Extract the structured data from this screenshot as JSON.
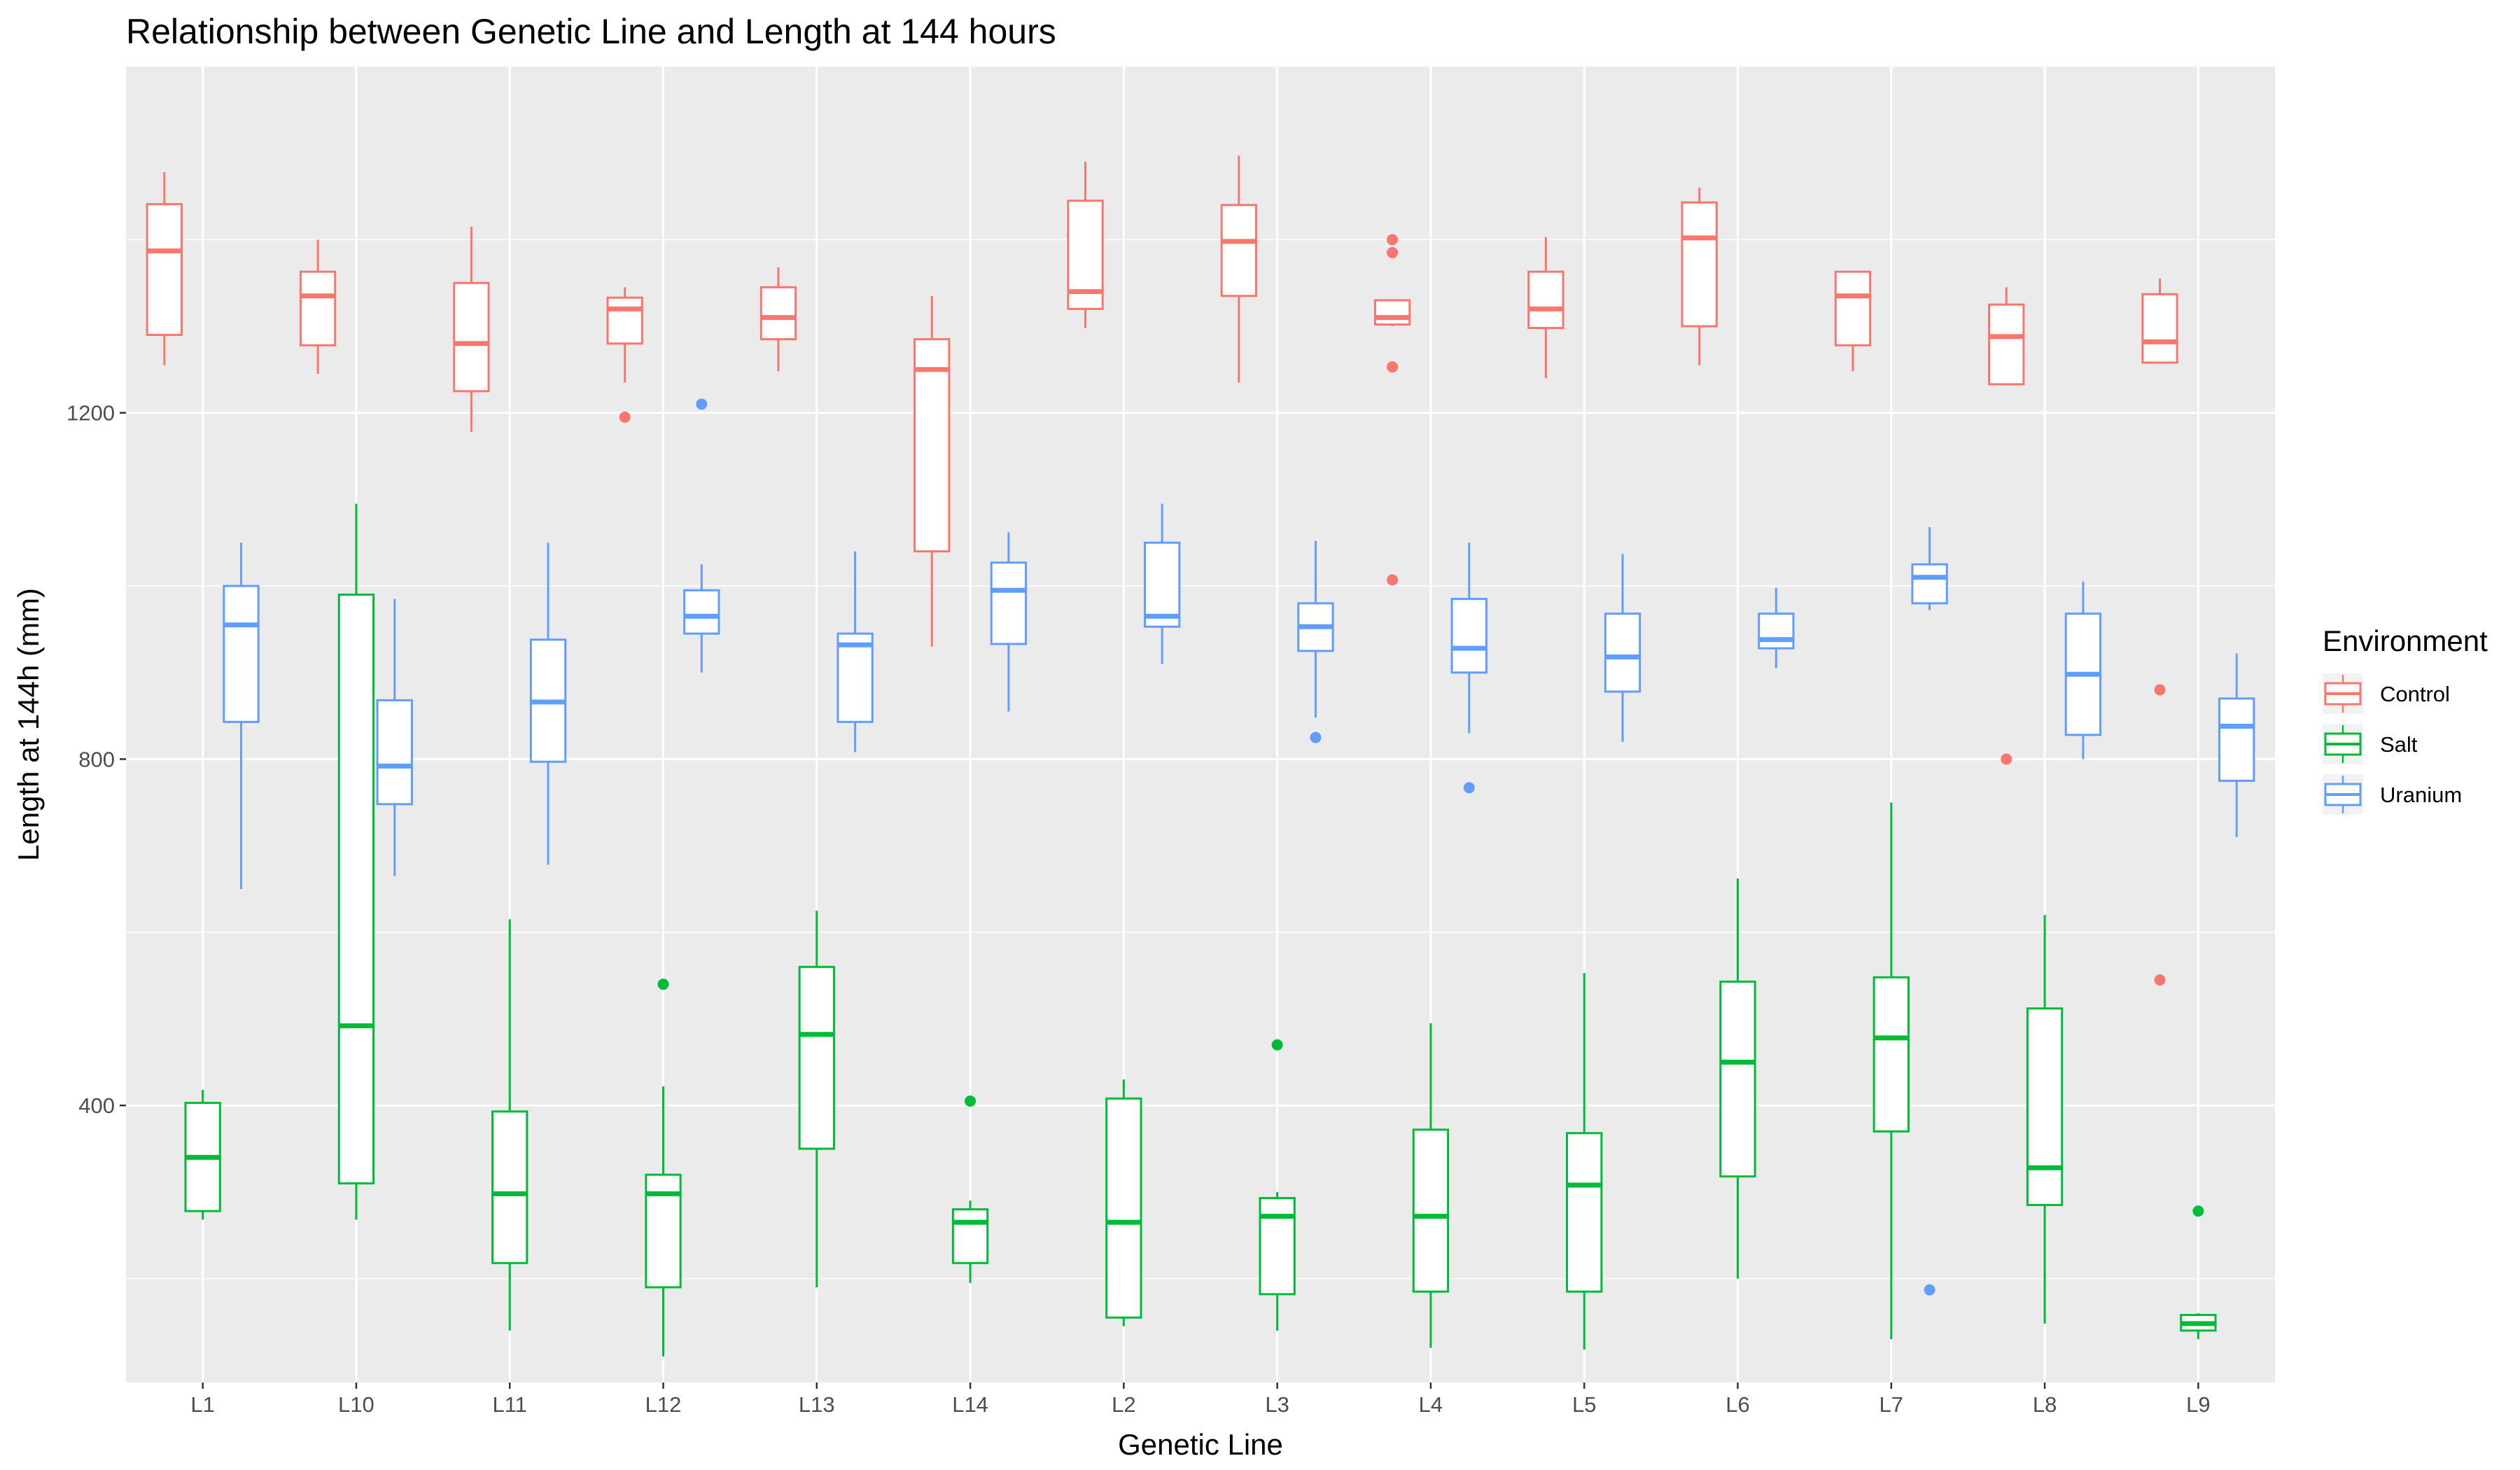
{
  "chart_data": {
    "type": "boxplot",
    "title": "Relationship between Genetic Line and Length at 144 hours",
    "xlabel": "Genetic Line",
    "ylabel": "Length at 144h (mm)",
    "ylim": [
      80,
      1600
    ],
    "yticks": [
      400,
      800,
      1200
    ],
    "grid": true,
    "legend": {
      "title": "Environment",
      "position": "right",
      "entries": [
        "Control",
        "Salt",
        "Uranium"
      ]
    },
    "colors": {
      "Control": "#F8766D",
      "Salt": "#00BA38",
      "Uranium": "#619CFF"
    },
    "categories": [
      "L1",
      "L10",
      "L11",
      "L12",
      "L13",
      "L14",
      "L2",
      "L3",
      "L4",
      "L5",
      "L6",
      "L7",
      "L8",
      "L9"
    ],
    "groups": [
      {
        "line": "L1",
        "env": "Control",
        "min": 1255,
        "q1": 1290,
        "median": 1387,
        "q3": 1441,
        "max": 1478,
        "outliers": []
      },
      {
        "line": "L1",
        "env": "Salt",
        "min": 268,
        "q1": 278,
        "median": 340,
        "q3": 403,
        "max": 418,
        "outliers": []
      },
      {
        "line": "L1",
        "env": "Uranium",
        "min": 650,
        "q1": 843,
        "median": 955,
        "q3": 1000,
        "max": 1050,
        "outliers": []
      },
      {
        "line": "L10",
        "env": "Salt",
        "min": 268,
        "q1": 310,
        "median": 492,
        "q3": 990,
        "max": 1095,
        "outliers": []
      },
      {
        "line": "L10",
        "env": "Control",
        "min": 1245,
        "q1": 1278,
        "median": 1335,
        "q3": 1363,
        "max": 1400,
        "outliers": []
      },
      {
        "line": "L10",
        "env": "Uranium",
        "min": 665,
        "q1": 748,
        "median": 792,
        "q3": 868,
        "max": 985,
        "outliers": []
      },
      {
        "line": "L11",
        "env": "Control",
        "min": 1178,
        "q1": 1225,
        "median": 1280,
        "q3": 1350,
        "max": 1415,
        "outliers": []
      },
      {
        "line": "L11",
        "env": "Salt",
        "min": 140,
        "q1": 218,
        "median": 298,
        "q3": 393,
        "max": 615,
        "outliers": []
      },
      {
        "line": "L11",
        "env": "Uranium",
        "min": 678,
        "q1": 797,
        "median": 866,
        "q3": 938,
        "max": 1050,
        "outliers": []
      },
      {
        "line": "L12",
        "env": "Control",
        "min": 1235,
        "q1": 1280,
        "median": 1320,
        "q3": 1333,
        "max": 1345,
        "outliers": [
          1195
        ]
      },
      {
        "line": "L12",
        "env": "Salt",
        "min": 110,
        "q1": 190,
        "median": 298,
        "q3": 320,
        "max": 422,
        "outliers": [
          540
        ]
      },
      {
        "line": "L12",
        "env": "Uranium",
        "min": 900,
        "q1": 945,
        "median": 965,
        "q3": 995,
        "max": 1025,
        "outliers": [
          1210
        ]
      },
      {
        "line": "L13",
        "env": "Control",
        "min": 1248,
        "q1": 1285,
        "median": 1310,
        "q3": 1345,
        "max": 1368,
        "outliers": []
      },
      {
        "line": "L13",
        "env": "Salt",
        "min": 190,
        "q1": 350,
        "median": 482,
        "q3": 560,
        "max": 625,
        "outliers": []
      },
      {
        "line": "L13",
        "env": "Uranium",
        "min": 808,
        "q1": 843,
        "median": 932,
        "q3": 945,
        "max": 1040,
        "outliers": []
      },
      {
        "line": "L14",
        "env": "Control",
        "min": 930,
        "q1": 1040,
        "median": 1250,
        "q3": 1285,
        "max": 1335,
        "outliers": []
      },
      {
        "line": "L14",
        "env": "Salt",
        "min": 195,
        "q1": 218,
        "median": 265,
        "q3": 280,
        "max": 290,
        "outliers": [
          405
        ]
      },
      {
        "line": "L14",
        "env": "Uranium",
        "min": 855,
        "q1": 933,
        "median": 995,
        "q3": 1027,
        "max": 1062,
        "outliers": []
      },
      {
        "line": "L2",
        "env": "Control",
        "min": 1298,
        "q1": 1320,
        "median": 1340,
        "q3": 1445,
        "max": 1490,
        "outliers": []
      },
      {
        "line": "L2",
        "env": "Salt",
        "min": 145,
        "q1": 155,
        "median": 265,
        "q3": 408,
        "max": 430,
        "outliers": []
      },
      {
        "line": "L2",
        "env": "Uranium",
        "min": 910,
        "q1": 953,
        "median": 965,
        "q3": 1050,
        "max": 1095,
        "outliers": []
      },
      {
        "line": "L3",
        "env": "Control",
        "min": 1235,
        "q1": 1335,
        "median": 1398,
        "q3": 1440,
        "max": 1497,
        "outliers": []
      },
      {
        "line": "L3",
        "env": "Salt",
        "min": 140,
        "q1": 182,
        "median": 272,
        "q3": 293,
        "max": 300,
        "outliers": [
          470
        ]
      },
      {
        "line": "L3",
        "env": "Uranium",
        "min": 848,
        "q1": 925,
        "median": 953,
        "q3": 980,
        "max": 1052,
        "outliers": [
          825
        ]
      },
      {
        "line": "L4",
        "env": "Control",
        "min": 1300,
        "q1": 1302,
        "median": 1310,
        "q3": 1330,
        "max": 1330,
        "outliers": [
          1400,
          1385,
          1253,
          1007
        ]
      },
      {
        "line": "L4",
        "env": "Salt",
        "min": 120,
        "q1": 185,
        "median": 272,
        "q3": 372,
        "max": 495,
        "outliers": []
      },
      {
        "line": "L4",
        "env": "Uranium",
        "min": 830,
        "q1": 900,
        "median": 928,
        "q3": 985,
        "max": 1050,
        "outliers": [
          767
        ]
      },
      {
        "line": "L5",
        "env": "Control",
        "min": 1240,
        "q1": 1298,
        "median": 1320,
        "q3": 1363,
        "max": 1403,
        "outliers": []
      },
      {
        "line": "L5",
        "env": "Salt",
        "min": 118,
        "q1": 185,
        "median": 308,
        "q3": 368,
        "max": 553,
        "outliers": []
      },
      {
        "line": "L5",
        "env": "Uranium",
        "min": 820,
        "q1": 878,
        "median": 918,
        "q3": 968,
        "max": 1037,
        "outliers": []
      },
      {
        "line": "L6",
        "env": "Control",
        "min": 1255,
        "q1": 1300,
        "median": 1402,
        "q3": 1443,
        "max": 1460,
        "outliers": []
      },
      {
        "line": "L6",
        "env": "Salt",
        "min": 200,
        "q1": 318,
        "median": 450,
        "q3": 543,
        "max": 662,
        "outliers": []
      },
      {
        "line": "L6",
        "env": "Uranium",
        "min": 905,
        "q1": 928,
        "median": 938,
        "q3": 968,
        "max": 998,
        "outliers": []
      },
      {
        "line": "L7",
        "env": "Control",
        "min": 1248,
        "q1": 1278,
        "median": 1335,
        "q3": 1363,
        "max": 1363,
        "outliers": []
      },
      {
        "line": "L7",
        "env": "Salt",
        "min": 130,
        "q1": 370,
        "median": 478,
        "q3": 548,
        "max": 750,
        "outliers": []
      },
      {
        "line": "L7",
        "env": "Uranium",
        "min": 972,
        "q1": 980,
        "median": 1010,
        "q3": 1025,
        "max": 1068,
        "outliers": [
          187
        ]
      },
      {
        "line": "L8",
        "env": "Control",
        "min": 1233,
        "q1": 1233,
        "median": 1288,
        "q3": 1325,
        "max": 1345,
        "outliers": [
          800
        ]
      },
      {
        "line": "L8",
        "env": "Salt",
        "min": 148,
        "q1": 285,
        "median": 328,
        "q3": 512,
        "max": 620,
        "outliers": []
      },
      {
        "line": "L8",
        "env": "Uranium",
        "min": 800,
        "q1": 828,
        "median": 898,
        "q3": 968,
        "max": 1005,
        "outliers": []
      },
      {
        "line": "L9",
        "env": "Control",
        "min": 1258,
        "q1": 1258,
        "median": 1282,
        "q3": 1337,
        "max": 1355,
        "outliers": [
          880,
          545
        ]
      },
      {
        "line": "L9",
        "env": "Salt",
        "min": 130,
        "q1": 140,
        "median": 148,
        "q3": 158,
        "max": 160,
        "outliers": [
          278
        ]
      },
      {
        "line": "L9",
        "env": "Uranium",
        "min": 710,
        "q1": 775,
        "median": 838,
        "q3": 870,
        "max": 922,
        "outliers": []
      }
    ]
  }
}
